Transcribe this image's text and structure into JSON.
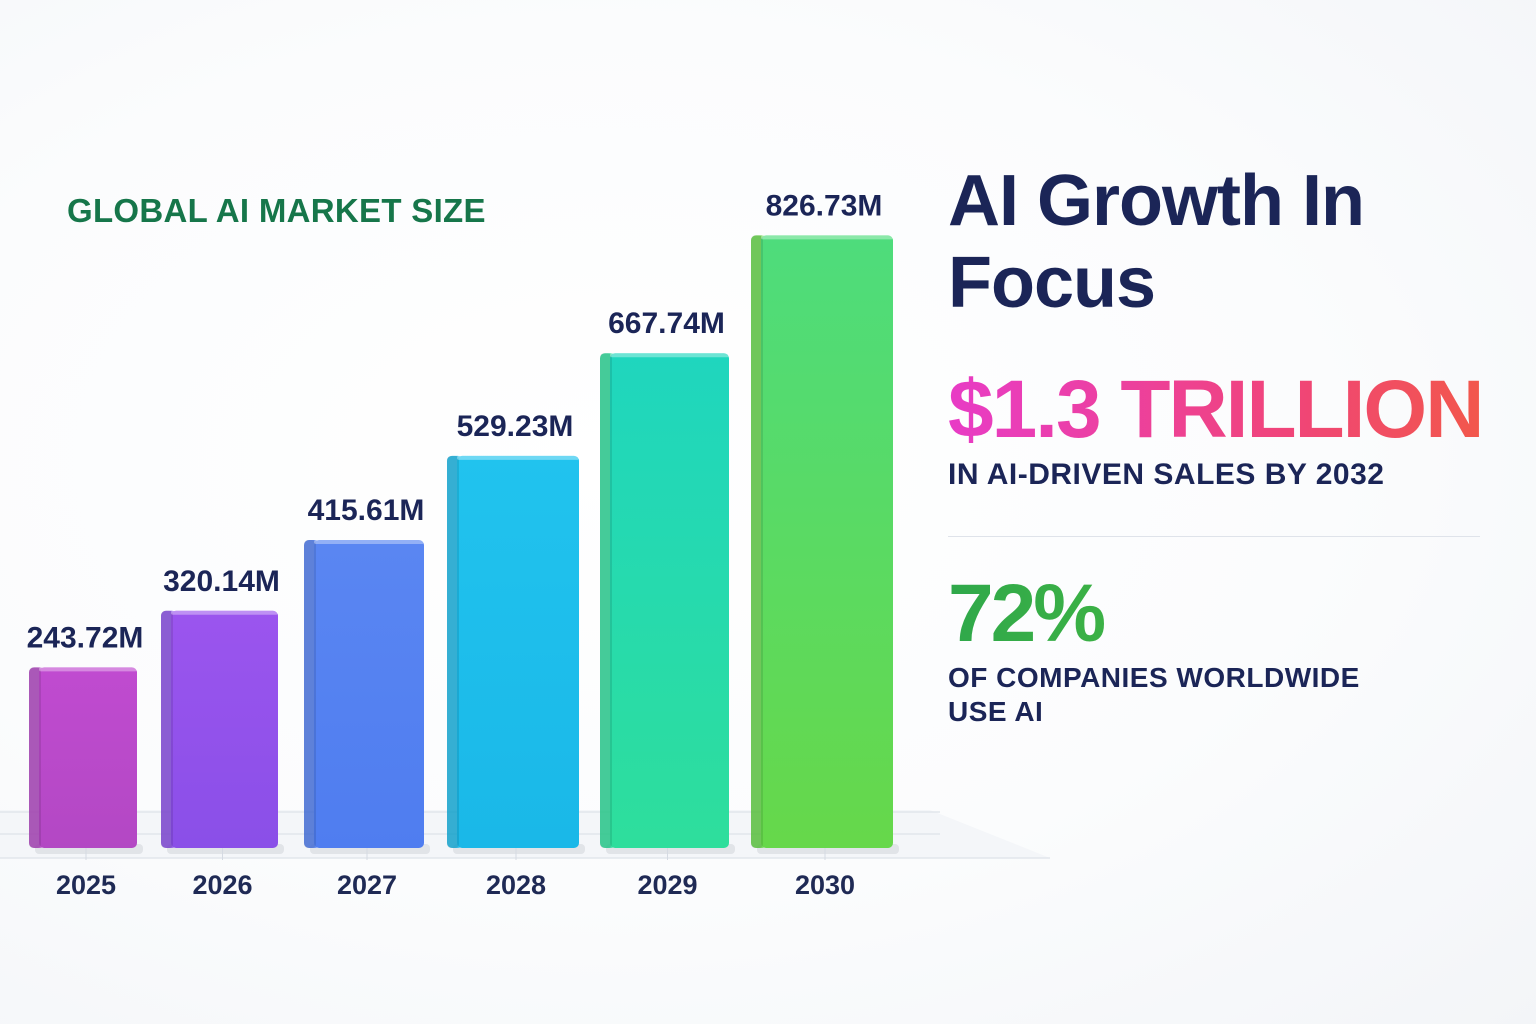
{
  "chart_data": {
    "type": "bar",
    "title": "GLOBAL AI MARKET SIZE",
    "categories": [
      "2025",
      "2026",
      "2027",
      "2028",
      "2029",
      "2030"
    ],
    "values": [
      243.72,
      320.14,
      415.61,
      529.23,
      667.74,
      826.73
    ],
    "value_labels": [
      "243.72M",
      "320.14M",
      "415.61M",
      "529.23M",
      "667.74M",
      "826.73M"
    ],
    "grid": false,
    "bar_colors": [
      [
        "#c04bd0",
        "#b348c4"
      ],
      [
        "#9b55ee",
        "#8a4fe8"
      ],
      [
        "#5a86f2",
        "#4f7df0"
      ],
      [
        "#21c3ee",
        "#1ab8e8"
      ],
      [
        "#1fd6be",
        "#2ede9c"
      ],
      [
        "#4edc7c",
        "#66d84a"
      ]
    ]
  },
  "headline": "AI Growth In Focus",
  "stats": [
    {
      "value": "$1.3 TRILLION",
      "caption": "IN AI-DRIVEN SALES BY 2032"
    },
    {
      "value": "72%",
      "caption": "OF COMPANIES WORLDWIDE USE AI"
    }
  ]
}
